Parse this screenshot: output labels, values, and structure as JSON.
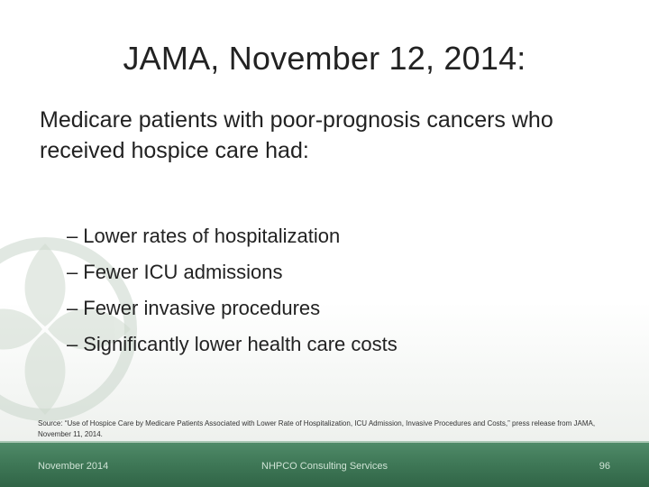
{
  "slide": {
    "title": "JAMA, November 12, 2014:",
    "intro": "Medicare patients with poor-prognosis cancers who received hospice care had:",
    "bullet_marker": "–",
    "bullets": [
      "Lower rates of hospitalization",
      "Fewer ICU admissions",
      "Fewer invasive procedures",
      "Significantly lower health care costs"
    ],
    "source": "Source: “Use of Hospice Care by Medicare Patients Associated with Lower Rate of Hospitalization, ICU Admission, Invasive Procedures and Costs,” press release from JAMA, November 11, 2014."
  },
  "footer": {
    "date": "November 2014",
    "organization": "NHPCO Consulting Services",
    "page_number": "96"
  },
  "colors": {
    "footer_green": "#3f7857",
    "footer_text": "#cfe3d5",
    "watermark": "#c5d3c6"
  }
}
